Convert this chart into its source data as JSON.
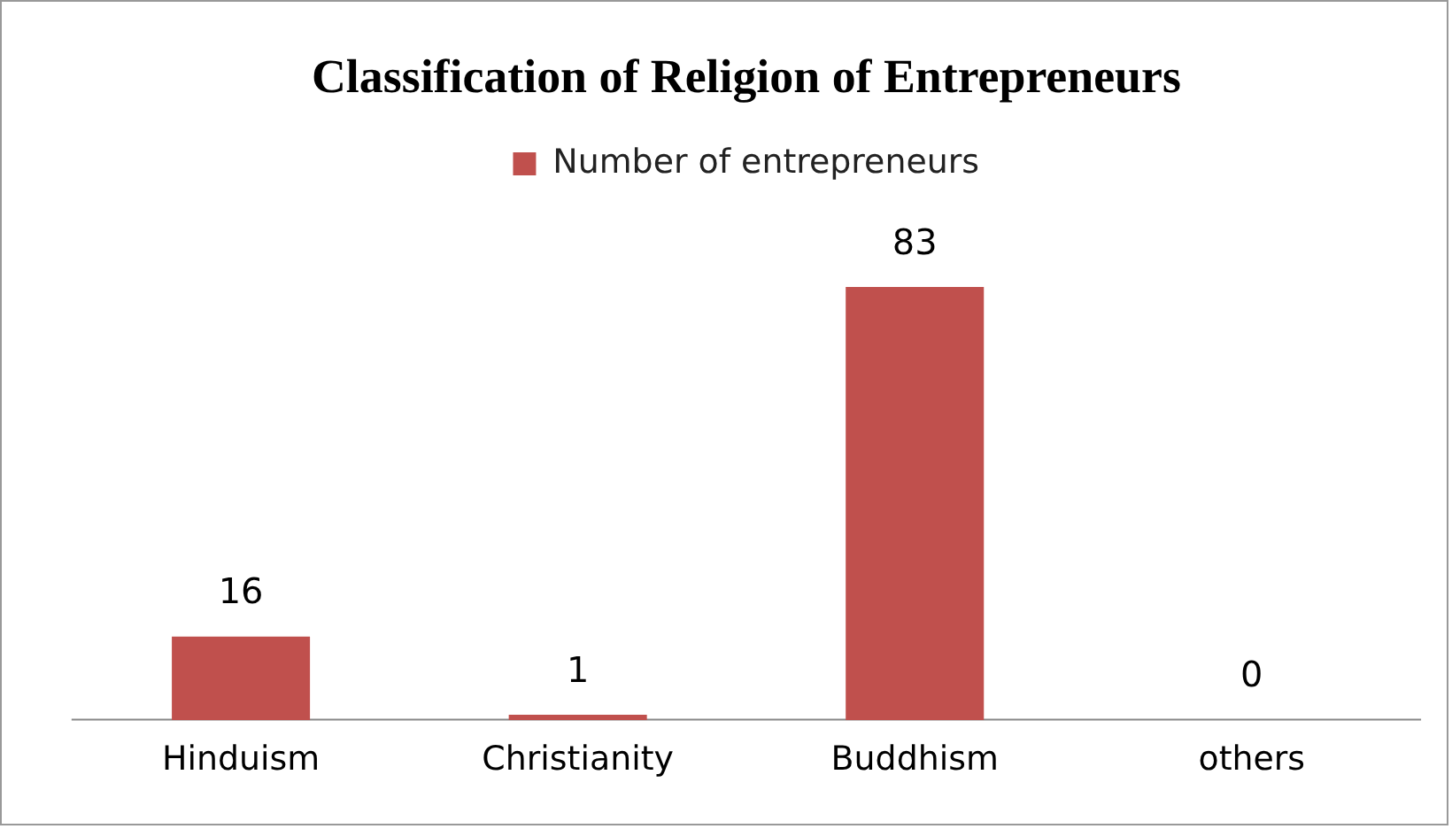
{
  "chart_data": {
    "type": "bar",
    "title": "Classification of Religion of Entrepreneurs",
    "categories": [
      "Hinduism",
      "Christianity",
      "Buddhism",
      "others"
    ],
    "series": [
      {
        "name": "Number of entrepreneurs",
        "color": "#c0504d",
        "values": [
          16,
          1,
          83,
          0
        ]
      }
    ],
    "data_labels": true,
    "legend": "top",
    "grid": false
  }
}
